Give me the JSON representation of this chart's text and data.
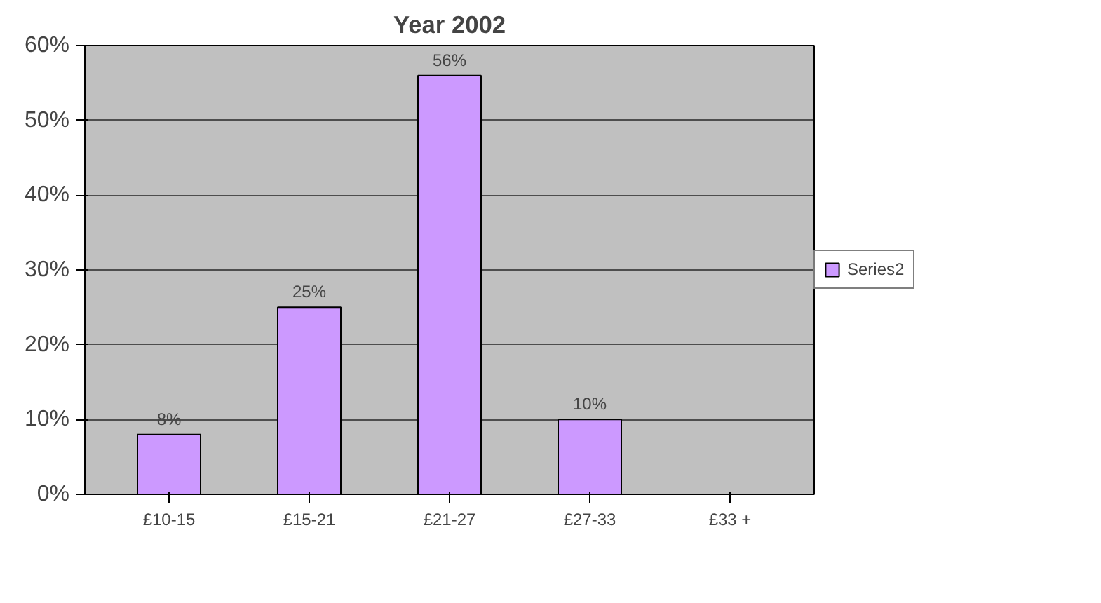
{
  "chart_data": {
    "type": "bar",
    "title": "Year 2002",
    "categories": [
      "£10-15",
      "£15-21",
      "£21-27",
      "£27-33",
      "£33 +"
    ],
    "series": [
      {
        "name": "Series2",
        "color": "#cc99ff",
        "values": [
          8,
          25,
          56,
          10,
          null
        ]
      }
    ],
    "value_labels": [
      "8%",
      "25%",
      "56%",
      "10%",
      null
    ],
    "ylim": [
      0,
      60
    ],
    "yticks": [
      {
        "value": 0,
        "label": "0%"
      },
      {
        "value": 10,
        "label": "10%"
      },
      {
        "value": 20,
        "label": "20%"
      },
      {
        "value": 30,
        "label": "30%"
      },
      {
        "value": 40,
        "label": "40%"
      },
      {
        "value": 50,
        "label": "50%"
      },
      {
        "value": 60,
        "label": "60%"
      }
    ],
    "grid": "y",
    "legend": "right"
  }
}
